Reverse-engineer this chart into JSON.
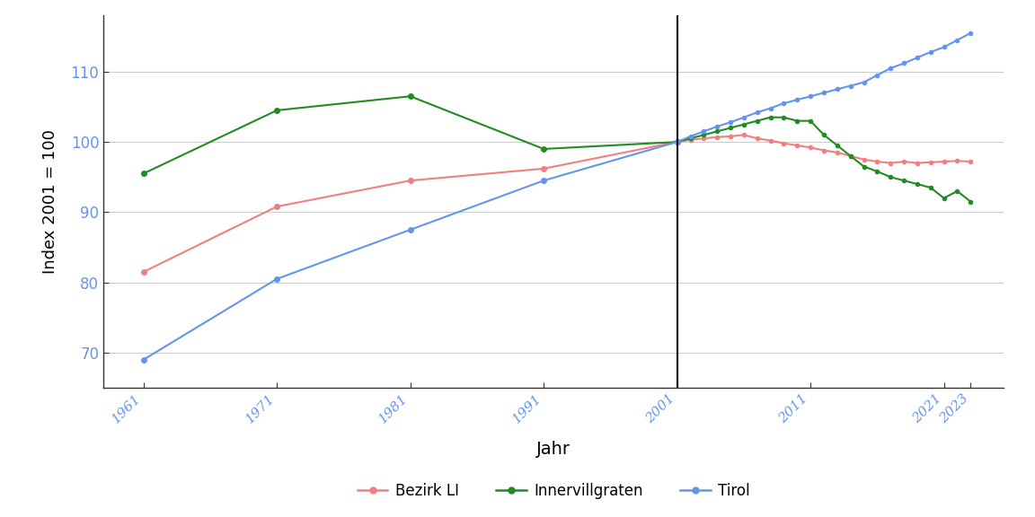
{
  "xlabel": "Jahr",
  "ylabel": "Index 2001 = 100",
  "vline_x": 2001,
  "ylim": [
    65,
    118
  ],
  "yticks": [
    70,
    80,
    90,
    100,
    110
  ],
  "xticks": [
    1961,
    1971,
    1981,
    1991,
    2001,
    2011,
    2021,
    2023
  ],
  "background_color": "#ffffff",
  "grid_color": "#cccccc",
  "tick_color": "#6495ED",
  "series": {
    "Bezirk LI": {
      "color": "#F08080",
      "x": [
        1961,
        1971,
        1981,
        1991,
        2001,
        2002,
        2003,
        2004,
        2005,
        2006,
        2007,
        2008,
        2009,
        2010,
        2011,
        2012,
        2013,
        2014,
        2015,
        2016,
        2017,
        2018,
        2019,
        2020,
        2021,
        2022,
        2023
      ],
      "y": [
        81.5,
        90.8,
        94.5,
        96.2,
        100.0,
        100.3,
        100.5,
        100.7,
        100.8,
        101.0,
        100.5,
        100.2,
        99.8,
        99.5,
        99.2,
        98.8,
        98.5,
        98.0,
        97.5,
        97.2,
        97.0,
        97.2,
        97.0,
        97.1,
        97.2,
        97.3,
        97.2
      ]
    },
    "Innervillgraten": {
      "color": "#228B22",
      "x": [
        1961,
        1971,
        1981,
        1991,
        2001,
        2002,
        2003,
        2004,
        2005,
        2006,
        2007,
        2008,
        2009,
        2010,
        2011,
        2012,
        2013,
        2014,
        2015,
        2016,
        2017,
        2018,
        2019,
        2020,
        2021,
        2022,
        2023
      ],
      "y": [
        95.5,
        104.5,
        106.5,
        99.0,
        100.0,
        100.5,
        101.0,
        101.5,
        102.0,
        102.5,
        103.0,
        103.5,
        103.5,
        103.0,
        103.0,
        101.0,
        99.5,
        98.0,
        96.5,
        95.8,
        95.0,
        94.5,
        94.0,
        93.5,
        92.0,
        93.0,
        91.5
      ]
    },
    "Tirol": {
      "color": "#6495ED",
      "x": [
        1961,
        1971,
        1981,
        1991,
        2001,
        2002,
        2003,
        2004,
        2005,
        2006,
        2007,
        2008,
        2009,
        2010,
        2011,
        2012,
        2013,
        2014,
        2015,
        2016,
        2017,
        2018,
        2019,
        2020,
        2021,
        2022,
        2023
      ],
      "y": [
        69.0,
        80.5,
        87.5,
        94.5,
        100.0,
        100.8,
        101.5,
        102.2,
        102.8,
        103.5,
        104.2,
        104.8,
        105.5,
        106.0,
        106.5,
        107.0,
        107.5,
        108.0,
        108.5,
        109.5,
        110.5,
        111.2,
        112.0,
        112.8,
        113.5,
        114.5,
        115.5
      ]
    }
  },
  "legend_labels": [
    "Bezirk LI",
    "Innervillgraten",
    "Tirol"
  ],
  "legend_colors": [
    "#F08080",
    "#228B22",
    "#6495ED"
  ]
}
